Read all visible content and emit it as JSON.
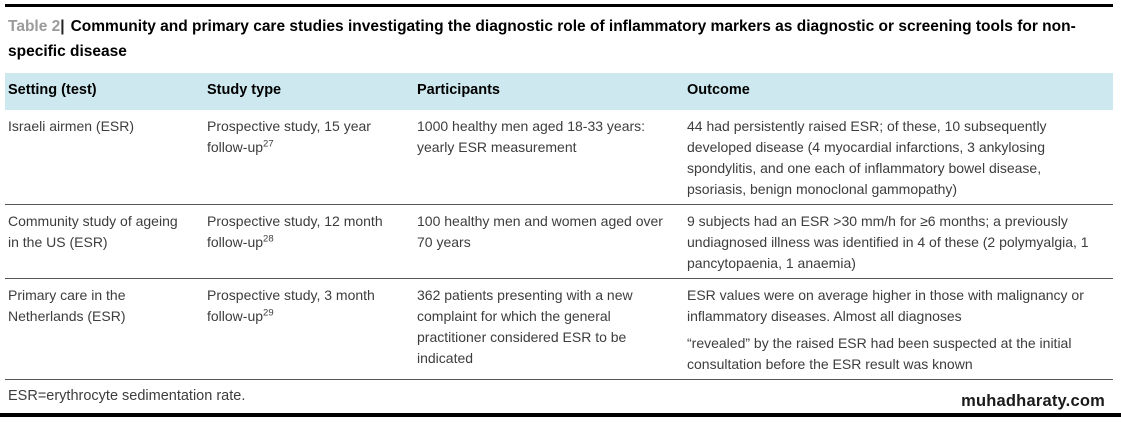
{
  "page": {
    "title_label": "Table 2",
    "title_sep": "|",
    "title_text": "Community and primary care studies investigating the diagnostic role of inflammatory markers as diagnostic or screening tools for non-specific disease",
    "footnote": "ESR=erythrocyte sedimentation rate.",
    "watermark": "muhadharaty.com"
  },
  "table": {
    "columns": [
      "Setting (test)",
      "Study type",
      "Participants",
      "Outcome"
    ],
    "rows": [
      {
        "setting": "Israeli airmen (ESR)",
        "study_type": "Prospective study, 15 year follow-up",
        "reference": "27",
        "participants": "1000 healthy men aged 18-33 years: yearly ESR measurement",
        "outcome": [
          "44 had persistently raised ESR; of these, 10 subsequently developed disease (4 myocardial infarctions, 3 ankylosing spondylitis, and one each of inflammatory bowel disease, psoriasis, benign monoclonal gammopathy)"
        ]
      },
      {
        "setting": "Community study of ageing in the US (ESR)",
        "study_type": "Prospective study, 12 month follow-up",
        "reference": "28",
        "participants": "100 healthy men and women aged over 70 years",
        "outcome": [
          "9 subjects had an ESR >30 mm/h for ≥6 months; a previously undiagnosed illness was identified in 4 of these (2 polymyalgia, 1 pancytopaenia, 1 anaemia)"
        ]
      },
      {
        "setting": "Primary care in the Netherlands (ESR)",
        "study_type": "Prospective study, 3 month follow-up",
        "reference": "29",
        "participants": "362 patients presenting with a new complaint for which the general practitioner considered ESR to be indicated",
        "outcome": [
          "ESR values were on average higher in those with malignancy or inflammatory diseases. Almost all diagnoses",
          "“revealed” by the raised ESR had been suspected at the initial consultation before the ESR result was known"
        ]
      }
    ]
  },
  "colors": {
    "header_bg": "#cde9ef",
    "body_text": "#3d3d3d",
    "rule": "#000000"
  }
}
